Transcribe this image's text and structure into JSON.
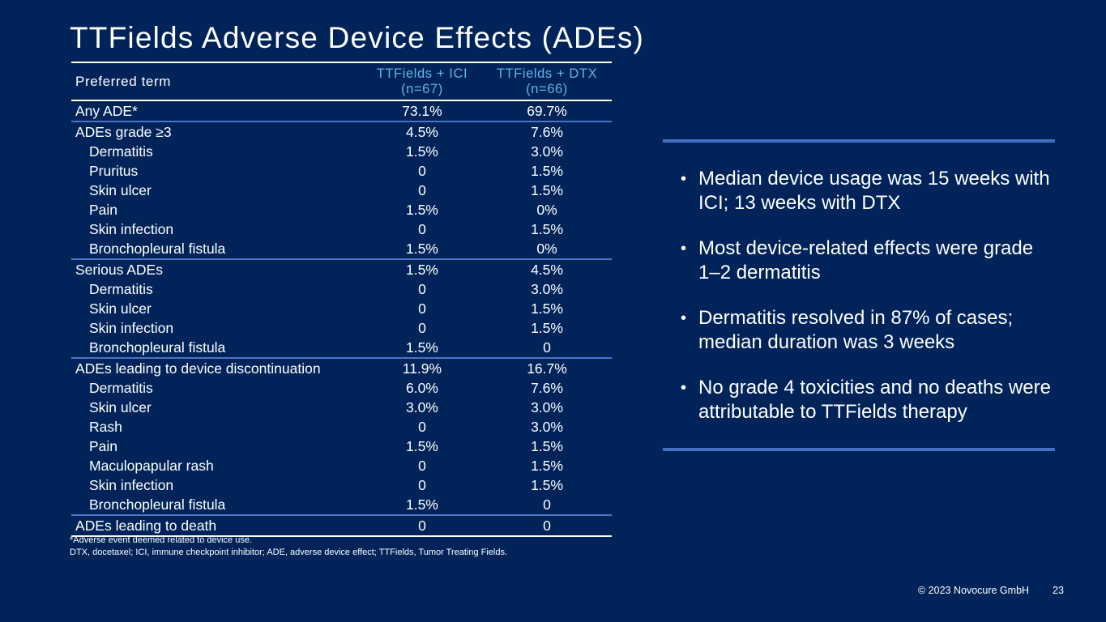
{
  "title": "TTFields Adverse Device Effects (ADEs)",
  "table": {
    "header": {
      "label": "Preferred term",
      "col_a_line1": "TTFields + ICI",
      "col_a_line2": "(n=67)",
      "col_b_line1": "TTFields + DTX",
      "col_b_line2": "(n=66)"
    },
    "rows": [
      {
        "label": "Any ADE*",
        "a": "73.1%",
        "b": "69.7%"
      },
      {
        "label": "ADEs grade ≥3",
        "a": "4.5%",
        "b": "7.6%"
      },
      {
        "label": "Dermatitis",
        "a": "1.5%",
        "b": "3.0%"
      },
      {
        "label": "Pruritus",
        "a": "0",
        "b": "1.5%"
      },
      {
        "label": "Skin ulcer",
        "a": "0",
        "b": "1.5%"
      },
      {
        "label": "Pain",
        "a": "1.5%",
        "b": "0%"
      },
      {
        "label": "Skin infection",
        "a": "0",
        "b": "1.5%"
      },
      {
        "label": "Bronchopleural fistula",
        "a": "1.5%",
        "b": "0%"
      },
      {
        "label": "Serious ADEs",
        "a": "1.5%",
        "b": "4.5%"
      },
      {
        "label": "Dermatitis",
        "a": "0",
        "b": "3.0%"
      },
      {
        "label": "Skin ulcer",
        "a": "0",
        "b": "1.5%"
      },
      {
        "label": "Skin infection",
        "a": "0",
        "b": "1.5%"
      },
      {
        "label": "Bronchopleural fistula",
        "a": "1.5%",
        "b": "0"
      },
      {
        "label": "ADEs leading to device discontinuation",
        "a": "11.9%",
        "b": "16.7%"
      },
      {
        "label": "Dermatitis",
        "a": "6.0%",
        "b": "7.6%"
      },
      {
        "label": "Skin ulcer",
        "a": "3.0%",
        "b": "3.0%"
      },
      {
        "label": "Rash",
        "a": "0",
        "b": "3.0%"
      },
      {
        "label": "Pain",
        "a": "1.5%",
        "b": "1.5%"
      },
      {
        "label": "Maculopapular rash",
        "a": "0",
        "b": "1.5%"
      },
      {
        "label": "Skin infection",
        "a": "0",
        "b": "1.5%"
      },
      {
        "label": "Bronchopleural fistula",
        "a": "1.5%",
        "b": "0"
      },
      {
        "label": "ADEs leading to death",
        "a": "0",
        "b": "0"
      }
    ]
  },
  "footnotes": {
    "line1": "*Adverse event deemed related to device use.",
    "line2": "DTX, docetaxel; ICI, immune checkpoint inhibitor; ADE, adverse device effect; TTFields, Tumor Treating Fields."
  },
  "bullet_char": "•",
  "bullets": [
    "Median device usage was 15 weeks with ICI; 13 weeks with DTX",
    "Most device-related effects were grade 1–2 dermatitis",
    "Dermatitis resolved in 87% of cases; median duration was 3 weeks",
    "No grade 4 toxicities and no deaths were attributable to TTFields therapy"
  ],
  "footer": {
    "copyright": "© 2023 Novocure GmbH",
    "page_number": "23"
  },
  "colors": {
    "background": "#00245a",
    "header_accent": "#5fb4ea",
    "rule": "#4470c4"
  }
}
